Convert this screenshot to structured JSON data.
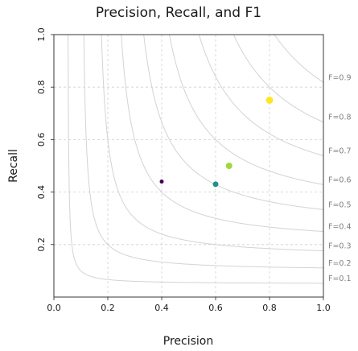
{
  "chart_data": {
    "type": "scatter",
    "title": "Precision, Recall, and F1",
    "xlabel": "Precision",
    "ylabel": "Recall",
    "xlim": [
      0,
      1
    ],
    "ylim": [
      0,
      1
    ],
    "x_ticks": [
      "0.0",
      "0.2",
      "0.4",
      "0.6",
      "0.8",
      "1.0"
    ],
    "y_ticks": [
      "0.2",
      "0.4",
      "0.6",
      "0.8",
      "1.0"
    ],
    "grid": true,
    "points": [
      {
        "x": 0.4,
        "y": 0.44,
        "color": "#440154",
        "size": 2.5
      },
      {
        "x": 0.6,
        "y": 0.43,
        "color": "#21918c",
        "size": 3.5
      },
      {
        "x": 0.65,
        "y": 0.5,
        "color": "#9fda3a",
        "size": 4
      },
      {
        "x": 0.8,
        "y": 0.75,
        "color": "#fde725",
        "size": 4.5
      }
    ],
    "iso_f1": [
      {
        "f": 0.1,
        "label": "F=0.1"
      },
      {
        "f": 0.2,
        "label": "F=0.2"
      },
      {
        "f": 0.3,
        "label": "F=0.3"
      },
      {
        "f": 0.4,
        "label": "F=0.4"
      },
      {
        "f": 0.5,
        "label": "F=0.5"
      },
      {
        "f": 0.6,
        "label": "F=0.6"
      },
      {
        "f": 0.7,
        "label": "F=0.7"
      },
      {
        "f": 0.8,
        "label": "F=0.8"
      },
      {
        "f": 0.9,
        "label": "F=0.9"
      }
    ]
  }
}
